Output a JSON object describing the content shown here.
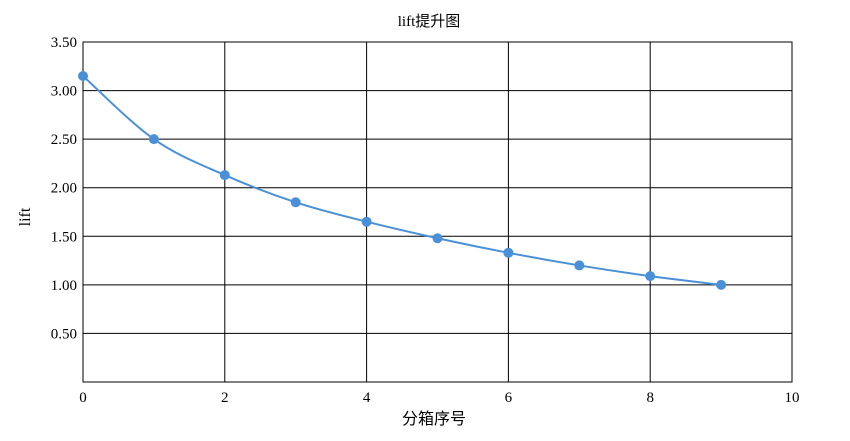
{
  "chart_data": {
    "type": "line",
    "title": "lift提升图",
    "xlabel": "分箱序号",
    "ylabel": "lift",
    "xlim": [
      0,
      10
    ],
    "ylim": [
      0,
      3.5
    ],
    "x_ticks": [
      "0",
      "2",
      "4",
      "6",
      "8",
      "10"
    ],
    "y_ticks": [
      "0.50",
      "1.00",
      "1.50",
      "2.00",
      "2.50",
      "3.00",
      "3.50"
    ],
    "grid": true,
    "smooth": true,
    "series": [
      {
        "color": "#4a90d9",
        "x": [
          0,
          1,
          2,
          3,
          4,
          5,
          6,
          7,
          8,
          9
        ],
        "y": [
          3.15,
          2.5,
          2.13,
          1.85,
          1.65,
          1.48,
          1.33,
          1.2,
          1.09,
          1.0
        ]
      }
    ]
  }
}
